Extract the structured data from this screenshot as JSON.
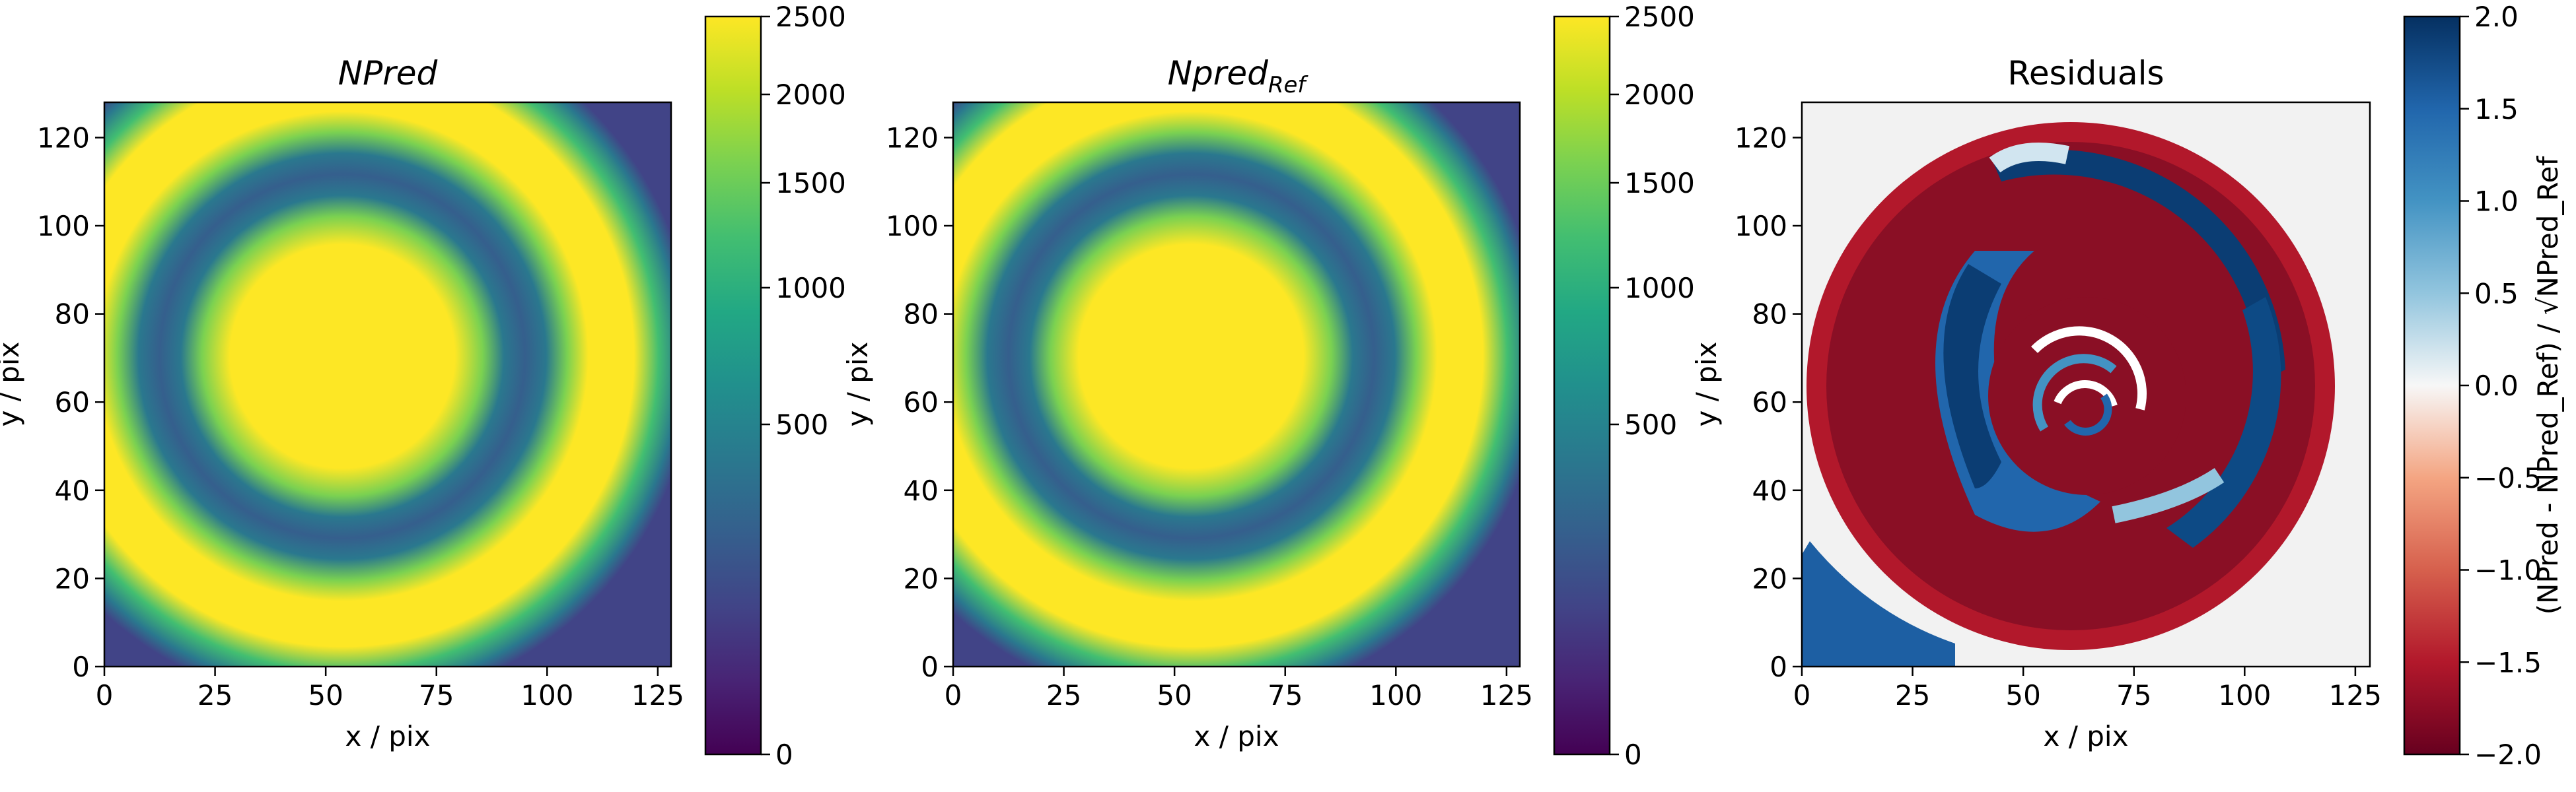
{
  "chart_data": [
    {
      "type": "heatmap",
      "title": "NPred",
      "xlabel": "x / pix",
      "ylabel": "y / pix",
      "xlim": [
        0,
        128
      ],
      "ylim": [
        0,
        128
      ],
      "xticks": [
        "0",
        "25",
        "50",
        "75",
        "100",
        "125"
      ],
      "yticks": [
        "0",
        "20",
        "40",
        "60",
        "80",
        "100",
        "120"
      ],
      "colormap": "viridis",
      "colorbar": {
        "scale": "sqrt",
        "range": [
          0,
          2500
        ],
        "ticks": [
          "0",
          "500",
          "1000",
          "1500",
          "2000",
          "2500"
        ],
        "label": ""
      },
      "pattern": "outer bright ring, dark inner ring, bright central disk"
    },
    {
      "type": "heatmap",
      "title": "Npred",
      "title_subscript": "Ref",
      "xlabel": "x / pix",
      "ylabel": "y / pix",
      "xlim": [
        0,
        128
      ],
      "ylim": [
        0,
        128
      ],
      "xticks": [
        "0",
        "25",
        "50",
        "75",
        "100",
        "125"
      ],
      "yticks": [
        "0",
        "20",
        "40",
        "60",
        "80",
        "100",
        "120"
      ],
      "colormap": "viridis",
      "colorbar": {
        "scale": "sqrt",
        "range": [
          0,
          2500
        ],
        "ticks": [
          "0",
          "500",
          "1000",
          "1500",
          "2000",
          "2500"
        ],
        "label": ""
      },
      "pattern": "outer bright ring, dark inner ring, bright central disk"
    },
    {
      "type": "heatmap",
      "title": "Residuals",
      "xlabel": "x / pix",
      "ylabel": "y / pix",
      "xlim": [
        0,
        128
      ],
      "ylim": [
        0,
        128
      ],
      "xticks": [
        "0",
        "25",
        "50",
        "75",
        "100",
        "125"
      ],
      "yticks": [
        "0",
        "20",
        "40",
        "60",
        "80",
        "100",
        "120"
      ],
      "colormap": "RdBu",
      "colorbar": {
        "scale": "linear",
        "range": [
          -2.0,
          2.0
        ],
        "ticks": [
          "−2.0",
          "−1.5",
          "−1.0",
          "−0.5",
          "0.0",
          "0.5",
          "1.0",
          "1.5",
          "2.0"
        ],
        "label": "(NPred - NPred_Ref) / √NPred_Ref"
      },
      "pattern": "spiral of red and blue residual bands"
    }
  ],
  "colors": {
    "viridis_low": "#440154",
    "viridis_mid": "#21908d",
    "viridis_high": "#fde725",
    "rdbu_low": "#67001f",
    "rdbu_mid": "#f7f7f7",
    "rdbu_high": "#053061"
  }
}
